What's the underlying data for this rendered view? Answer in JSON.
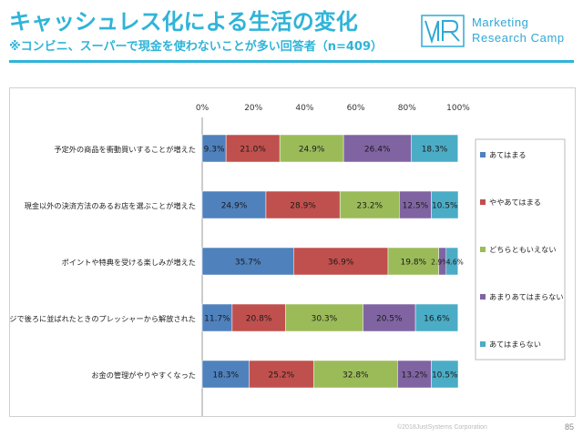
{
  "header": {
    "title": "キャッシュレス化による生活の変化",
    "subtitle": "※コンビニ、スーパーで現金を使わないことが多い回答者（n=409）"
  },
  "logo": {
    "line1": "Marketing",
    "line2": "Research Camp",
    "text": "MRC"
  },
  "footer": {
    "copyright": "©2018JustSystems Corporation",
    "page_number": "85"
  },
  "colors": {
    "accent": "#2fb4d8",
    "series": [
      "#4f81bd",
      "#c0504d",
      "#9bbb59",
      "#8064a2",
      "#4bacc6"
    ]
  },
  "chart_data": {
    "type": "bar",
    "orientation": "horizontal",
    "stacked": true,
    "percent_stacked": true,
    "xlim": [
      0,
      100
    ],
    "x_ticks": [
      "0%",
      "20%",
      "40%",
      "60%",
      "80%",
      "100%"
    ],
    "categories": [
      "予定外の商品を衝動買いすることが増えた",
      "現金以外の決済方法のあるお店を選ぶことが増えた",
      "ポイントや特典を受ける楽しみが増えた",
      "レジで後ろに並ばれたときのプレッシャーから解放された",
      "お金の管理がやりやすくなった"
    ],
    "series": [
      {
        "name": "あてはまる",
        "values": [
          9.3,
          24.9,
          35.7,
          11.7,
          18.3
        ]
      },
      {
        "name": "ややあてはまる",
        "values": [
          21.0,
          28.9,
          36.9,
          20.8,
          25.2
        ]
      },
      {
        "name": "どちらともいえない",
        "values": [
          24.9,
          23.2,
          19.8,
          30.3,
          32.8
        ]
      },
      {
        "name": "あまりあてはまらない",
        "values": [
          26.4,
          12.5,
          2.9,
          20.5,
          13.2
        ]
      },
      {
        "name": "あてはまらない",
        "values": [
          18.3,
          10.5,
          4.6,
          16.6,
          10.5
        ]
      }
    ],
    "data_labels": [
      [
        "9.3%",
        "21.0%",
        "24.9%",
        "26.4%",
        "18.3%"
      ],
      [
        "24.9%",
        "28.9%",
        "23.2%",
        "12.5%",
        "10.5%"
      ],
      [
        "35.7%",
        "36.9%",
        "19.8%",
        "2.9%",
        "4.6%"
      ],
      [
        "11.7%",
        "20.8%",
        "30.3%",
        "20.5%",
        "16.6%"
      ],
      [
        "18.3%",
        "25.2%",
        "32.8%",
        "13.2%",
        "10.5%"
      ]
    ],
    "legend_position": "right",
    "grid": false
  }
}
